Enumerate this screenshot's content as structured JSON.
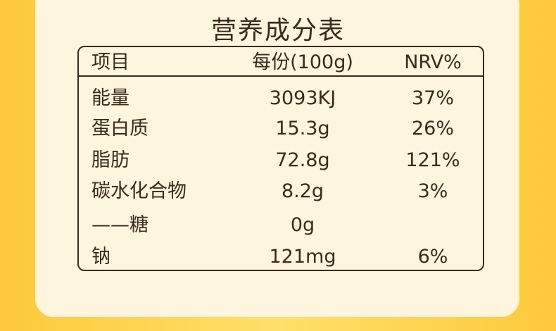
{
  "title": "营养成分表",
  "table": {
    "header": [
      "项目",
      "每份(100g)",
      "NRV%"
    ],
    "rows": [
      [
        "能量",
        "3093KJ",
        "37%"
      ],
      [
        "蛋白质",
        "15.3g",
        "26%"
      ],
      [
        "脂肪",
        "72.8g",
        "121%"
      ],
      [
        "碳水化合物",
        "8.2g",
        "3%"
      ],
      [
        "——糖",
        "0g",
        ""
      ],
      [
        "钠",
        "121mg",
        "6%"
      ]
    ]
  }
}
